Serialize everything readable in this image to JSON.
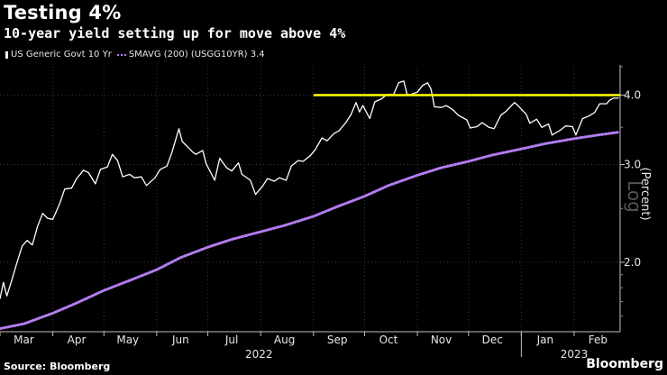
{
  "header": {
    "title": "Testing 4%",
    "subtitle": "10-year yield setting up for move above 4%"
  },
  "legend": {
    "items": [
      {
        "label": "US Generic Govt 10 Yr",
        "color": "#ffffff",
        "style": "solid"
      },
      {
        "label": "SMAVG (200) (USGG10YR) 3.4",
        "color": "#b47cf0",
        "style": "dotted"
      }
    ]
  },
  "footer": {
    "source": "Source: Bloomberg",
    "brand": "Bloomberg"
  },
  "chart_data": {
    "type": "line",
    "ylabel": "(Percent)",
    "yscale": "log",
    "ylim": [
      1.5,
      4.5
    ],
    "xlim": [
      "2022-03-01",
      "2023-02-28"
    ],
    "scale_label": "Log",
    "yticks": [
      {
        "value": 2.0,
        "label": "2.0"
      },
      {
        "value": 3.0,
        "label": "3.0"
      },
      {
        "value": 4.0,
        "label": "4.0"
      }
    ],
    "xticks": [
      {
        "date": "2022-03-15",
        "label": "Mar"
      },
      {
        "date": "2022-04-15",
        "label": "Apr"
      },
      {
        "date": "2022-05-15",
        "label": "May"
      },
      {
        "date": "2022-06-15",
        "label": "Jun"
      },
      {
        "date": "2022-07-15",
        "label": "Jul"
      },
      {
        "date": "2022-08-15",
        "label": "Aug"
      },
      {
        "date": "2022-09-15",
        "label": "Sep"
      },
      {
        "date": "2022-10-15",
        "label": "Oct"
      },
      {
        "date": "2022-11-15",
        "label": "Nov"
      },
      {
        "date": "2022-12-15",
        "label": "Dec"
      },
      {
        "date": "2023-01-15",
        "label": "Jan"
      },
      {
        "date": "2023-02-15",
        "label": "Feb"
      }
    ],
    "year_labels": [
      {
        "date": "2022-07-31",
        "label": "2022"
      },
      {
        "date": "2023-02-01",
        "label": "2023"
      }
    ],
    "annotations": [
      {
        "type": "hline",
        "value": 4.0,
        "start": "2022-09-01",
        "end": "2023-02-28",
        "color": "#ffff00"
      }
    ],
    "series": [
      {
        "name": "US Generic Govt 10 Yr",
        "color": "#ffffff",
        "points": [
          [
            "2022-03-01",
            1.72
          ],
          [
            "2022-03-03",
            1.84
          ],
          [
            "2022-03-05",
            1.74
          ],
          [
            "2022-03-08",
            1.86
          ],
          [
            "2022-03-11",
            2.0
          ],
          [
            "2022-03-14",
            2.14
          ],
          [
            "2022-03-17",
            2.19
          ],
          [
            "2022-03-20",
            2.15
          ],
          [
            "2022-03-23",
            2.32
          ],
          [
            "2022-03-26",
            2.45
          ],
          [
            "2022-03-29",
            2.4
          ],
          [
            "2022-04-01",
            2.39
          ],
          [
            "2022-04-05",
            2.55
          ],
          [
            "2022-04-08",
            2.71
          ],
          [
            "2022-04-12",
            2.72
          ],
          [
            "2022-04-15",
            2.83
          ],
          [
            "2022-04-19",
            2.93
          ],
          [
            "2022-04-22",
            2.9
          ],
          [
            "2022-04-26",
            2.77
          ],
          [
            "2022-04-29",
            2.94
          ],
          [
            "2022-05-03",
            2.97
          ],
          [
            "2022-05-06",
            3.13
          ],
          [
            "2022-05-09",
            3.05
          ],
          [
            "2022-05-12",
            2.85
          ],
          [
            "2022-05-16",
            2.88
          ],
          [
            "2022-05-19",
            2.84
          ],
          [
            "2022-05-23",
            2.85
          ],
          [
            "2022-05-26",
            2.75
          ],
          [
            "2022-05-31",
            2.84
          ],
          [
            "2022-06-03",
            2.94
          ],
          [
            "2022-06-07",
            2.98
          ],
          [
            "2022-06-10",
            3.16
          ],
          [
            "2022-06-14",
            3.48
          ],
          [
            "2022-06-16",
            3.3
          ],
          [
            "2022-06-19",
            3.23
          ],
          [
            "2022-06-22",
            3.16
          ],
          [
            "2022-06-24",
            3.13
          ],
          [
            "2022-06-28",
            3.18
          ],
          [
            "2022-06-30",
            3.01
          ],
          [
            "2022-07-05",
            2.81
          ],
          [
            "2022-07-08",
            3.08
          ],
          [
            "2022-07-12",
            2.96
          ],
          [
            "2022-07-15",
            2.92
          ],
          [
            "2022-07-19",
            3.02
          ],
          [
            "2022-07-21",
            2.88
          ],
          [
            "2022-07-26",
            2.81
          ],
          [
            "2022-07-29",
            2.65
          ],
          [
            "2022-08-02",
            2.74
          ],
          [
            "2022-08-05",
            2.83
          ],
          [
            "2022-08-09",
            2.8
          ],
          [
            "2022-08-12",
            2.84
          ],
          [
            "2022-08-16",
            2.81
          ],
          [
            "2022-08-19",
            2.98
          ],
          [
            "2022-08-23",
            3.05
          ],
          [
            "2022-08-26",
            3.04
          ],
          [
            "2022-08-30",
            3.11
          ],
          [
            "2022-09-02",
            3.19
          ],
          [
            "2022-09-06",
            3.35
          ],
          [
            "2022-09-09",
            3.31
          ],
          [
            "2022-09-13",
            3.41
          ],
          [
            "2022-09-16",
            3.45
          ],
          [
            "2022-09-20",
            3.57
          ],
          [
            "2022-09-23",
            3.69
          ],
          [
            "2022-09-26",
            3.88
          ],
          [
            "2022-09-28",
            3.73
          ],
          [
            "2022-09-30",
            3.83
          ],
          [
            "2022-10-04",
            3.63
          ],
          [
            "2022-10-07",
            3.89
          ],
          [
            "2022-10-11",
            3.94
          ],
          [
            "2022-10-14",
            4.01
          ],
          [
            "2022-10-18",
            4.01
          ],
          [
            "2022-10-21",
            4.21
          ],
          [
            "2022-10-24",
            4.24
          ],
          [
            "2022-10-26",
            4.01
          ],
          [
            "2022-10-28",
            4.01
          ],
          [
            "2022-11-01",
            4.05
          ],
          [
            "2022-11-04",
            4.16
          ],
          [
            "2022-11-07",
            4.21
          ],
          [
            "2022-11-09",
            4.1
          ],
          [
            "2022-11-11",
            3.81
          ],
          [
            "2022-11-15",
            3.8
          ],
          [
            "2022-11-18",
            3.83
          ],
          [
            "2022-11-22",
            3.76
          ],
          [
            "2022-11-25",
            3.68
          ],
          [
            "2022-11-30",
            3.61
          ],
          [
            "2022-12-02",
            3.49
          ],
          [
            "2022-12-06",
            3.51
          ],
          [
            "2022-12-09",
            3.57
          ],
          [
            "2022-12-13",
            3.5
          ],
          [
            "2022-12-16",
            3.48
          ],
          [
            "2022-12-20",
            3.68
          ],
          [
            "2022-12-23",
            3.74
          ],
          [
            "2022-12-28",
            3.88
          ],
          [
            "2022-12-30",
            3.83
          ],
          [
            "2023-01-04",
            3.69
          ],
          [
            "2023-01-06",
            3.56
          ],
          [
            "2023-01-10",
            3.62
          ],
          [
            "2023-01-13",
            3.5
          ],
          [
            "2023-01-17",
            3.55
          ],
          [
            "2023-01-19",
            3.39
          ],
          [
            "2023-01-24",
            3.46
          ],
          [
            "2023-01-27",
            3.52
          ],
          [
            "2023-01-31",
            3.51
          ],
          [
            "2023-02-02",
            3.39
          ],
          [
            "2023-02-06",
            3.63
          ],
          [
            "2023-02-09",
            3.66
          ],
          [
            "2023-02-13",
            3.72
          ],
          [
            "2023-02-16",
            3.86
          ],
          [
            "2023-02-20",
            3.86
          ],
          [
            "2023-02-22",
            3.92
          ],
          [
            "2023-02-24",
            3.95
          ],
          [
            "2023-02-27",
            3.95
          ]
        ]
      },
      {
        "name": "SMAVG (200) (USGG10YR) 3.4",
        "color": "#b47cf0",
        "points": [
          [
            "2022-03-01",
            1.52
          ],
          [
            "2022-03-15",
            1.55
          ],
          [
            "2022-04-01",
            1.62
          ],
          [
            "2022-04-15",
            1.69
          ],
          [
            "2022-05-01",
            1.78
          ],
          [
            "2022-05-15",
            1.85
          ],
          [
            "2022-06-01",
            1.94
          ],
          [
            "2022-06-15",
            2.04
          ],
          [
            "2022-07-01",
            2.13
          ],
          [
            "2022-07-15",
            2.2
          ],
          [
            "2022-08-01",
            2.27
          ],
          [
            "2022-08-15",
            2.33
          ],
          [
            "2022-09-01",
            2.42
          ],
          [
            "2022-09-15",
            2.52
          ],
          [
            "2022-10-01",
            2.63
          ],
          [
            "2022-10-15",
            2.75
          ],
          [
            "2022-11-01",
            2.87
          ],
          [
            "2022-11-15",
            2.96
          ],
          [
            "2022-12-01",
            3.04
          ],
          [
            "2022-12-15",
            3.12
          ],
          [
            "2023-01-01",
            3.2
          ],
          [
            "2023-01-15",
            3.27
          ],
          [
            "2023-02-01",
            3.34
          ],
          [
            "2023-02-15",
            3.39
          ],
          [
            "2023-02-27",
            3.43
          ]
        ]
      }
    ]
  }
}
